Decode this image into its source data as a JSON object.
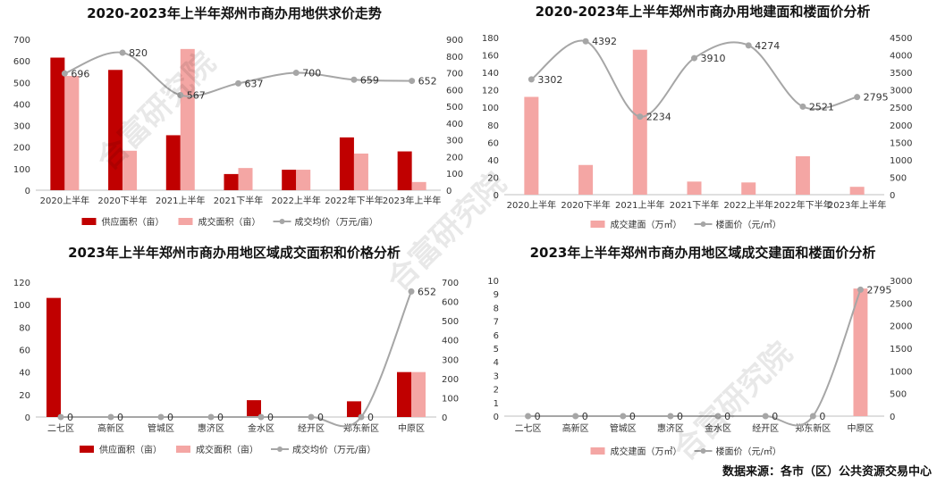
{
  "source": "数据来源：各市（区）公共资源交易中心",
  "watermark": "合富研究院",
  "colors": {
    "supply": "#c00000",
    "deal": "#f4a6a4",
    "line": "#a6a6a6",
    "axis": "#bfbfbf"
  },
  "chart_data": [
    {
      "type": "bar",
      "title": "2020-2023年上半年郑州市商办用地供求价走势",
      "categories": [
        "2020上半年",
        "2020下半年",
        "2021上半年",
        "2021下半年",
        "2022上半年",
        "2022年下半年",
        "2023年上半年"
      ],
      "ylim": [
        0,
        700
      ],
      "y2lim": [
        0,
        900
      ],
      "yticks": [
        "0",
        "100",
        "200",
        "300",
        "400",
        "500",
        "600",
        "700"
      ],
      "y2ticks": [
        "0",
        "100",
        "200",
        "300",
        "400",
        "500",
        "600",
        "700",
        "800",
        "900"
      ],
      "series": [
        {
          "name": "供应面积（亩）",
          "kind": "bar",
          "axis": "left",
          "values": [
            615,
            558,
            255,
            75,
            95,
            245,
            180
          ]
        },
        {
          "name": "成交面积（亩）",
          "kind": "bar",
          "axis": "left",
          "values": [
            530,
            183,
            655,
            103,
            95,
            170,
            38
          ]
        },
        {
          "name": "成交均价（万元/亩）",
          "kind": "line",
          "axis": "right",
          "values": [
            696,
            820,
            567,
            637,
            700,
            659,
            652
          ],
          "labels": [
            "696",
            "820",
            "567",
            "637",
            "700",
            "659",
            "652"
          ]
        }
      ]
    },
    {
      "type": "bar",
      "title": "2020-2023年上半年郑州市商办用地建面和楼面价分析",
      "categories": [
        "2020上半年",
        "2020下半年",
        "2021上半年",
        "2021下半年",
        "2022上半年",
        "2022年下半年",
        "2023年上半年"
      ],
      "ylim": [
        0,
        180
      ],
      "y2lim": [
        0,
        4500
      ],
      "yticks": [
        "0",
        "20",
        "40",
        "60",
        "80",
        "100",
        "120",
        "140",
        "160",
        "180"
      ],
      "y2ticks": [
        "0",
        "500",
        "1000",
        "1500",
        "2000",
        "2500",
        "3000",
        "3500",
        "4000",
        "4500"
      ],
      "series": [
        {
          "name": "成交建面（万㎡）",
          "kind": "bar",
          "axis": "left",
          "values": [
            112,
            34,
            166,
            15,
            14,
            44,
            9
          ]
        },
        {
          "name": "楼面价（元/㎡）",
          "kind": "line",
          "axis": "right",
          "values": [
            3302,
            4392,
            2234,
            3910,
            4274,
            2521,
            2795
          ],
          "labels": [
            "3302",
            "4392",
            "2234",
            "3910",
            "4274",
            "2521",
            "2795"
          ]
        }
      ]
    },
    {
      "type": "bar",
      "title": "2023年上半年郑州市商办用地区域成交面积和价格分析",
      "categories": [
        "二七区",
        "高新区",
        "管城区",
        "惠济区",
        "金水区",
        "经开区",
        "郑东新区",
        "中原区"
      ],
      "ylim": [
        0,
        120
      ],
      "y2lim": [
        0,
        700
      ],
      "yticks": [
        "0",
        "20",
        "40",
        "60",
        "80",
        "100",
        "120"
      ],
      "y2ticks": [
        "0",
        "100",
        "200",
        "300",
        "400",
        "500",
        "600",
        "700"
      ],
      "series": [
        {
          "name": "供应面积（亩）",
          "kind": "bar",
          "axis": "left",
          "values": [
            106,
            0,
            0,
            0,
            15,
            0,
            14,
            40
          ]
        },
        {
          "name": "成交面积（亩）",
          "kind": "bar",
          "axis": "left",
          "values": [
            0,
            0,
            0,
            0,
            0,
            0,
            0,
            40
          ]
        },
        {
          "name": "成交均价（万元/亩）",
          "kind": "line",
          "axis": "right",
          "values": [
            0,
            0,
            0,
            0,
            0,
            0,
            0,
            652
          ],
          "labels": [
            "0",
            "0",
            "0",
            "0",
            "0",
            "0",
            "0",
            "652"
          ]
        }
      ]
    },
    {
      "type": "bar",
      "title": "2023年上半年郑州市商办用地区域成交建面和楼面价分析",
      "categories": [
        "二七区",
        "高新区",
        "管城区",
        "惠济区",
        "金水区",
        "经开区",
        "郑东新区",
        "中原区"
      ],
      "ylim": [
        0,
        10
      ],
      "y2lim": [
        0,
        3000
      ],
      "yticks": [
        "0",
        "1",
        "2",
        "3",
        "4",
        "5",
        "6",
        "7",
        "8",
        "9",
        "10"
      ],
      "y2ticks": [
        "0",
        "500",
        "1000",
        "1500",
        "2000",
        "2500",
        "3000"
      ],
      "series": [
        {
          "name": "成交建面（万㎡）",
          "kind": "bar",
          "axis": "left",
          "values": [
            0,
            0,
            0,
            0,
            0,
            0,
            0,
            9.4
          ]
        },
        {
          "name": "楼面价（元/㎡）",
          "kind": "line",
          "axis": "right",
          "values": [
            0,
            0,
            0,
            0,
            0,
            0,
            0,
            2795
          ],
          "labels": [
            "0",
            "0",
            "0",
            "0",
            "0",
            "0",
            "0",
            "2795"
          ]
        }
      ]
    }
  ]
}
